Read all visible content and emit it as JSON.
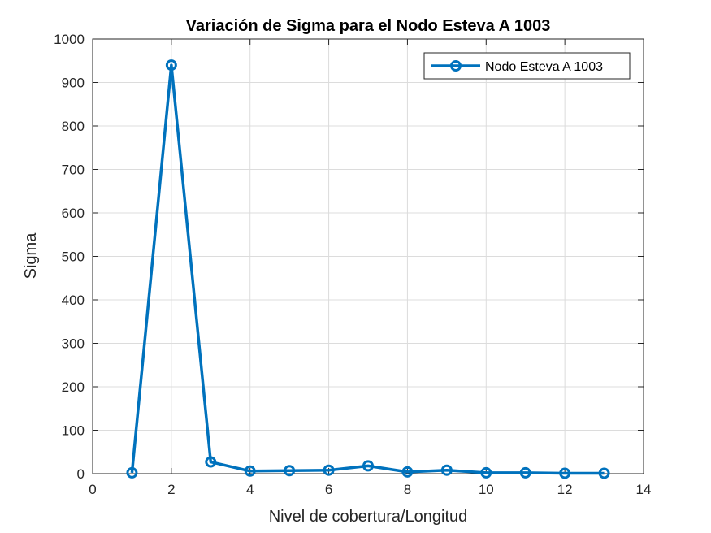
{
  "chart_data": {
    "type": "line",
    "title": "Variación de Sigma para el Nodo Esteva A 1003",
    "xlabel": "Nivel de cobertura/Longitud",
    "ylabel": "Sigma",
    "xlim": [
      0,
      14
    ],
    "ylim": [
      0,
      1000
    ],
    "xticks": [
      0,
      2,
      4,
      6,
      8,
      10,
      12,
      14
    ],
    "yticks": [
      0,
      100,
      200,
      300,
      400,
      500,
      600,
      700,
      800,
      900,
      1000
    ],
    "grid": true,
    "legend_position": "top-right",
    "series": [
      {
        "name": "Nodo Esteva A 1003",
        "color": "#0072BD",
        "marker": "circle",
        "x": [
          1,
          2,
          3,
          4,
          5,
          6,
          7,
          8,
          9,
          10,
          11,
          12,
          13
        ],
        "y": [
          2,
          940,
          27,
          6,
          7,
          8,
          18,
          4,
          8,
          2,
          2,
          1,
          1
        ]
      }
    ]
  }
}
